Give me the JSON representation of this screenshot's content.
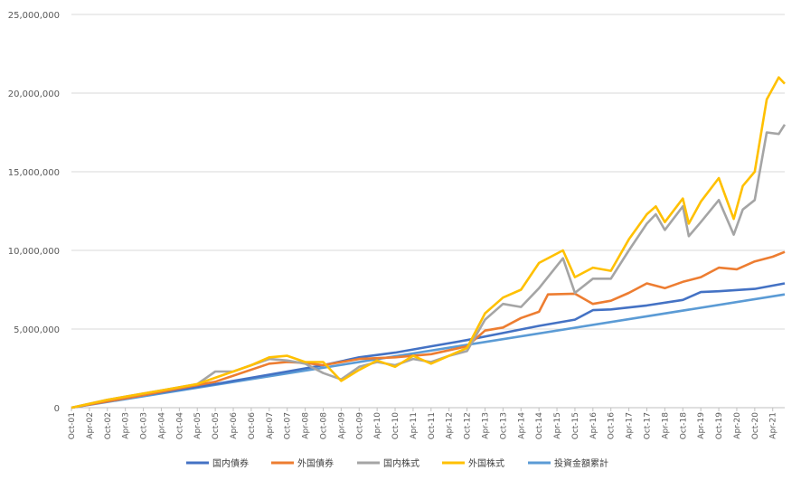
{
  "chart_data": {
    "type": "line",
    "title": "",
    "xlabel": "",
    "ylabel": "",
    "ylim": [
      0,
      25000000
    ],
    "yticks": [
      "0",
      "5,000,000",
      "10,000,000",
      "15,000,000",
      "20,000,000",
      "25,000,000"
    ],
    "ytick_values": [
      0,
      5000000,
      10000000,
      15000000,
      20000000,
      25000000
    ],
    "grid": "horizontal",
    "legend_position": "bottom",
    "x_start": "2001-10",
    "x_end": "2021-08",
    "xticks": [
      "Oct-01",
      "Apr-02",
      "Oct-02",
      "Apr-03",
      "Oct-03",
      "Apr-04",
      "Oct-04",
      "Apr-05",
      "Oct-05",
      "Apr-06",
      "Oct-06",
      "Apr-07",
      "Oct-07",
      "Apr-08",
      "Oct-08",
      "Apr-09",
      "Oct-09",
      "Apr-10",
      "Oct-10",
      "Apr-11",
      "Oct-11",
      "Apr-12",
      "Oct-12",
      "Apr-13",
      "Oct-13",
      "Apr-14",
      "Oct-14",
      "Apr-15",
      "Oct-15",
      "Apr-16",
      "Oct-16",
      "Apr-17",
      "Oct-17",
      "Apr-18",
      "Oct-18",
      "Apr-19",
      "Oct-19",
      "Apr-20",
      "Oct-20",
      "Apr-21"
    ],
    "series": [
      {
        "name": "国内債券",
        "color": "#4472C4",
        "points": [
          [
            "2001-10",
            0
          ],
          [
            "2003-10",
            800000
          ],
          [
            "2005-10",
            1500000
          ],
          [
            "2007-10",
            2300000
          ],
          [
            "2008-10",
            2700000
          ],
          [
            "2009-10",
            3200000
          ],
          [
            "2010-10",
            3500000
          ],
          [
            "2011-10",
            3900000
          ],
          [
            "2012-10",
            4300000
          ],
          [
            "2013-10",
            4750000
          ],
          [
            "2014-10",
            5200000
          ],
          [
            "2015-10",
            5600000
          ],
          [
            "2016-04",
            6200000
          ],
          [
            "2016-10",
            6250000
          ],
          [
            "2017-10",
            6500000
          ],
          [
            "2018-10",
            6850000
          ],
          [
            "2019-04",
            7350000
          ],
          [
            "2019-10",
            7400000
          ],
          [
            "2020-10",
            7550000
          ],
          [
            "2021-08",
            7900000
          ]
        ]
      },
      {
        "name": "外国債券",
        "color": "#ED7D31",
        "points": [
          [
            "2001-10",
            0
          ],
          [
            "2003-10",
            800000
          ],
          [
            "2005-10",
            1650000
          ],
          [
            "2007-04",
            2800000
          ],
          [
            "2007-10",
            2900000
          ],
          [
            "2008-04",
            2850000
          ],
          [
            "2008-10",
            2700000
          ],
          [
            "2009-10",
            3100000
          ],
          [
            "2010-10",
            3200000
          ],
          [
            "2011-10",
            3400000
          ],
          [
            "2012-10",
            3900000
          ],
          [
            "2013-04",
            4900000
          ],
          [
            "2013-10",
            5100000
          ],
          [
            "2014-04",
            5700000
          ],
          [
            "2014-10",
            6100000
          ],
          [
            "2015-01",
            7200000
          ],
          [
            "2015-10",
            7250000
          ],
          [
            "2016-04",
            6600000
          ],
          [
            "2016-10",
            6800000
          ],
          [
            "2017-04",
            7300000
          ],
          [
            "2017-10",
            7900000
          ],
          [
            "2018-04",
            7600000
          ],
          [
            "2018-10",
            8000000
          ],
          [
            "2019-04",
            8300000
          ],
          [
            "2019-10",
            8900000
          ],
          [
            "2020-04",
            8800000
          ],
          [
            "2020-10",
            9300000
          ],
          [
            "2021-04",
            9600000
          ],
          [
            "2021-08",
            9900000
          ]
        ]
      },
      {
        "name": "国内株式",
        "color": "#A5A5A5",
        "points": [
          [
            "2001-10",
            0
          ],
          [
            "2002-10",
            500000
          ],
          [
            "2003-04",
            700000
          ],
          [
            "2004-04",
            1100000
          ],
          [
            "2005-04",
            1500000
          ],
          [
            "2005-10",
            2300000
          ],
          [
            "2006-04",
            2300000
          ],
          [
            "2006-10",
            2700000
          ],
          [
            "2007-04",
            3100000
          ],
          [
            "2007-10",
            3000000
          ],
          [
            "2008-04",
            2800000
          ],
          [
            "2008-10",
            2200000
          ],
          [
            "2009-04",
            1800000
          ],
          [
            "2009-10",
            2600000
          ],
          [
            "2010-04",
            2900000
          ],
          [
            "2010-10",
            2700000
          ],
          [
            "2011-04",
            3100000
          ],
          [
            "2011-10",
            2900000
          ],
          [
            "2012-04",
            3300000
          ],
          [
            "2012-10",
            3600000
          ],
          [
            "2013-04",
            5600000
          ],
          [
            "2013-10",
            6600000
          ],
          [
            "2014-04",
            6400000
          ],
          [
            "2014-10",
            7600000
          ],
          [
            "2015-06",
            9500000
          ],
          [
            "2015-10",
            7300000
          ],
          [
            "2016-04",
            8200000
          ],
          [
            "2016-10",
            8200000
          ],
          [
            "2017-04",
            10000000
          ],
          [
            "2017-10",
            11700000
          ],
          [
            "2018-01",
            12300000
          ],
          [
            "2018-04",
            11300000
          ],
          [
            "2018-10",
            12800000
          ],
          [
            "2018-12",
            10900000
          ],
          [
            "2019-04",
            11800000
          ],
          [
            "2019-10",
            13200000
          ],
          [
            "2020-03",
            11000000
          ],
          [
            "2020-06",
            12600000
          ],
          [
            "2020-10",
            13200000
          ],
          [
            "2021-02",
            17500000
          ],
          [
            "2021-06",
            17400000
          ],
          [
            "2021-08",
            18000000
          ]
        ]
      },
      {
        "name": "外国株式",
        "color": "#FFC000",
        "points": [
          [
            "2001-10",
            0
          ],
          [
            "2002-10",
            500000
          ],
          [
            "2003-04",
            700000
          ],
          [
            "2004-04",
            1100000
          ],
          [
            "2005-04",
            1500000
          ],
          [
            "2005-10",
            1900000
          ],
          [
            "2006-04",
            2300000
          ],
          [
            "2006-10",
            2700000
          ],
          [
            "2007-04",
            3200000
          ],
          [
            "2007-10",
            3300000
          ],
          [
            "2008-04",
            2900000
          ],
          [
            "2008-10",
            2900000
          ],
          [
            "2009-04",
            1700000
          ],
          [
            "2009-10",
            2400000
          ],
          [
            "2010-04",
            3000000
          ],
          [
            "2010-10",
            2600000
          ],
          [
            "2011-04",
            3300000
          ],
          [
            "2011-10",
            2800000
          ],
          [
            "2012-04",
            3300000
          ],
          [
            "2012-10",
            3800000
          ],
          [
            "2013-04",
            6000000
          ],
          [
            "2013-10",
            7000000
          ],
          [
            "2014-04",
            7500000
          ],
          [
            "2014-10",
            9200000
          ],
          [
            "2015-06",
            10000000
          ],
          [
            "2015-10",
            8300000
          ],
          [
            "2016-04",
            8900000
          ],
          [
            "2016-10",
            8700000
          ],
          [
            "2017-04",
            10700000
          ],
          [
            "2017-10",
            12300000
          ],
          [
            "2018-01",
            12800000
          ],
          [
            "2018-04",
            11800000
          ],
          [
            "2018-10",
            13300000
          ],
          [
            "2018-12",
            11700000
          ],
          [
            "2019-04",
            13100000
          ],
          [
            "2019-10",
            14600000
          ],
          [
            "2020-03",
            12000000
          ],
          [
            "2020-06",
            14100000
          ],
          [
            "2020-10",
            15000000
          ],
          [
            "2021-02",
            19600000
          ],
          [
            "2021-06",
            21000000
          ],
          [
            "2021-08",
            20600000
          ]
        ]
      },
      {
        "name": "投資金額累計",
        "color": "#5B9BD5",
        "points": [
          [
            "2001-10",
            0
          ],
          [
            "2021-08",
            7200000
          ]
        ]
      }
    ]
  }
}
